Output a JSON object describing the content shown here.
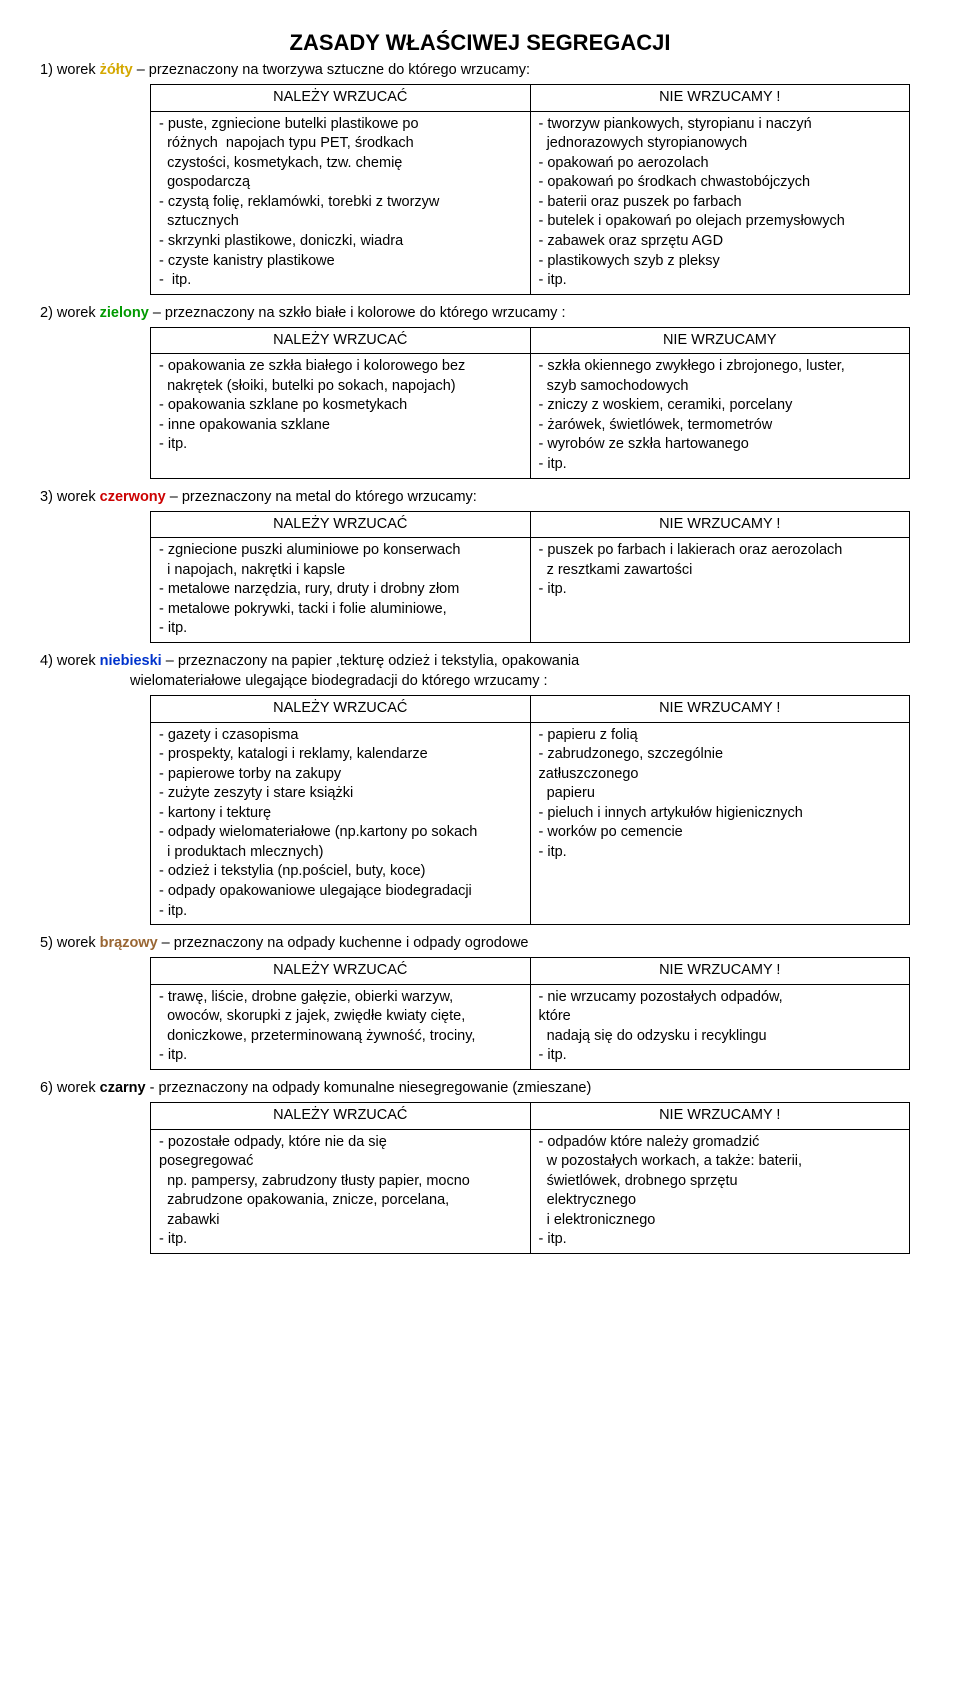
{
  "title": "ZASADY WŁAŚCIWEJ SEGREGACJI",
  "sections": [
    {
      "intro_prefix": "1) worek ",
      "bag": "żółty",
      "bag_color": "#d4a800",
      "intro_suffix": " – przeznaczony na tworzywa sztuczne do którego wrzucamy:",
      "sub": "",
      "left_header": "NALEŻY  WRZUCAĆ",
      "right_header": "NIE WRZUCAMY !",
      "left": "- puste, zgniecione butelki plastikowe po\n  różnych  napojach typu PET, środkach\n  czystości, kosmetykach, tzw. chemię\n  gospodarczą\n- czystą folię, reklamówki, torebki z tworzyw\n  sztucznych\n- skrzynki plastikowe, doniczki, wiadra\n- czyste kanistry plastikowe\n-  itp.",
      "right": "- tworzyw piankowych, styropianu i naczyń\n  jednorazowych styropianowych\n- opakowań po aerozolach\n- opakowań po środkach chwastobójczych\n- baterii oraz puszek po farbach\n- butelek i opakowań po olejach przemysłowych\n- zabawek oraz sprzętu AGD\n- plastikowych szyb z pleksy\n- itp."
    },
    {
      "intro_prefix": "2) worek ",
      "bag": "zielony",
      "bag_color": "#009900",
      "intro_suffix": " – przeznaczony na szkło białe i kolorowe do którego wrzucamy :",
      "sub": "",
      "left_header": "NALEŻY  WRZUCAĆ",
      "right_header": "NIE WRZUCAMY",
      "left": "- opakowania ze szkła białego i kolorowego bez\n  nakrętek (słoiki, butelki po sokach, napojach)\n- opakowania szklane po kosmetykach\n- inne opakowania szklane\n- itp.",
      "right": "- szkła okiennego zwykłego i zbrojonego, luster,\n  szyb samochodowych\n- zniczy z woskiem, ceramiki, porcelany\n- żarówek, świetlówek, termometrów\n- wyrobów ze szkła hartowanego\n- itp."
    },
    {
      "intro_prefix": "3) worek ",
      "bag": "czerwony",
      "bag_color": "#cc0000",
      "intro_suffix": " – przeznaczony na metal do którego wrzucamy:",
      "sub": "",
      "left_header": "NALEŻY  WRZUCAĆ",
      "right_header": "NIE WRZUCAMY !",
      "left": "- zgniecione puszki aluminiowe po konserwach\n  i napojach, nakrętki i kapsle\n- metalowe narzędzia, rury, druty i drobny złom\n- metalowe pokrywki, tacki i folie aluminiowe,\n- itp.",
      "right": "- puszek po farbach i lakierach oraz aerozolach\n  z resztkami zawartości\n- itp."
    },
    {
      "intro_prefix": "4) worek ",
      "bag": "niebieski",
      "bag_color": "#0033cc",
      "intro_suffix": " – przeznaczony na papier ,tekturę odzież i tekstylia, opakowania",
      "sub": "wielomateriałowe ulegające biodegradacji do którego wrzucamy :",
      "left_header": "NALEŻY  WRZUCAĆ",
      "right_header": "NIE WRZUCAMY !",
      "left": "- gazety i czasopisma\n- prospekty, katalogi i reklamy, kalendarze\n- papierowe torby na zakupy\n- zużyte zeszyty i stare książki\n- kartony i tekturę\n- odpady wielomateriałowe (np.kartony po sokach\n  i produktach mlecznych)\n- odzież i tekstylia (np.pościel, buty, koce)\n- odpady opakowaniowe ulegające biodegradacji\n- itp.",
      "right": "- papieru z folią\n- zabrudzonego, szczególnie\nzatłuszczonego\n  papieru\n- pieluch i innych artykułów higienicznych\n- worków po cemencie\n- itp."
    },
    {
      "intro_prefix": "5) worek ",
      "bag": "brązowy",
      "bag_color": "#996633",
      "intro_suffix": "   – przeznaczony na odpady kuchenne i odpady ogrodowe",
      "sub": "",
      "left_header": "NALEŻY  WRZUCAĆ",
      "right_header": "NIE WRZUCAMY !",
      "left": "- trawę, liście, drobne gałęzie, obierki warzyw,\n  owoców, skorupki z jajek, zwiędłe kwiaty cięte,\n  doniczkowe, przeterminowaną żywność, trociny,\n- itp.",
      "right": "- nie wrzucamy pozostałych odpadów,\nktóre\n  nadają się do odzysku i recyklingu\n- itp."
    },
    {
      "intro_prefix": "6) worek ",
      "bag": "czarny",
      "bag_color": "#000000",
      "intro_suffix": "  - przeznaczony na odpady komunalne niesegregowanie (zmieszane)",
      "sub": "",
      "left_header": "NALEŻY  WRZUCAĆ",
      "right_header": "NIE WRZUCAMY !",
      "left": "- pozostałe odpady, które nie da się\nposegregować\n  np. pampersy, zabrudzony tłusty papier, mocno\n  zabrudzone opakowania, znicze, porcelana,\n  zabawki\n- itp.",
      "right": "- odpadów które należy gromadzić\n  w pozostałych workach, a także: baterii,\n  świetlówek, drobnego sprzętu\n  elektrycznego\n  i elektronicznego\n- itp."
    }
  ]
}
